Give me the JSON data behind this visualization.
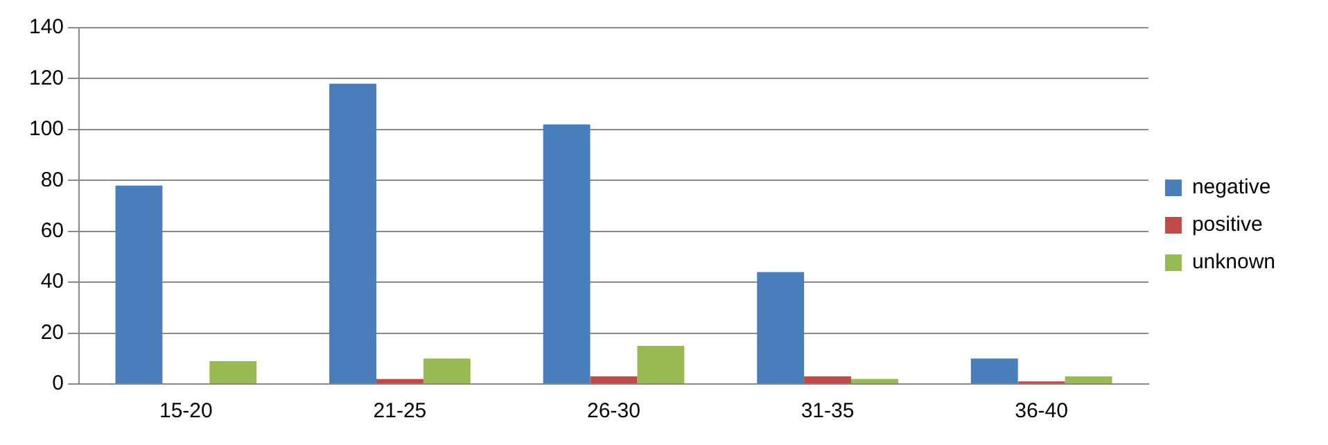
{
  "chart_data": {
    "type": "bar",
    "categories": [
      "15-20",
      "21-25",
      "26-30",
      "31-35",
      "36-40"
    ],
    "series": [
      {
        "name": "negative",
        "color": "#4a7ebb",
        "values": [
          78,
          118,
          102,
          44,
          10
        ]
      },
      {
        "name": "positive",
        "color": "#be4b48",
        "values": [
          0,
          2,
          3,
          3,
          1
        ]
      },
      {
        "name": "unknown",
        "color": "#98b954",
        "values": [
          9,
          10,
          15,
          2,
          3
        ]
      }
    ],
    "ylim": [
      0,
      140
    ],
    "yticks": [
      0,
      20,
      40,
      60,
      80,
      100,
      120,
      140
    ],
    "grid": "y",
    "legend": "right"
  }
}
